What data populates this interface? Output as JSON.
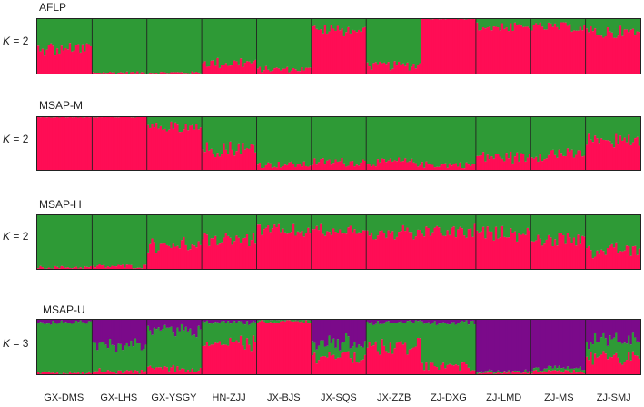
{
  "chart_data": {
    "type": "bar",
    "stacked": true,
    "ylim": [
      0,
      1
    ],
    "colors": {
      "green": "#2e9a36",
      "red": "#ff0d55",
      "purple": "#7b0a8a"
    },
    "populations": [
      "GX-DMS",
      "GX-LHS",
      "GX-YSGY",
      "HN-ZJJ",
      "JX-BJS",
      "JX-SQS",
      "JX-ZZB",
      "ZJ-DXG",
      "ZJ-LMD",
      "ZJ-MS",
      "ZJ-SMJ"
    ],
    "panels": [
      {
        "title": "AFLP",
        "k_label": "K",
        "k_value": "= 2",
        "series": [
          "red",
          "green"
        ],
        "membership": [
          [
            0.45,
            0.55
          ],
          [
            0.02,
            0.98
          ],
          [
            0.02,
            0.98
          ],
          [
            0.2,
            0.8
          ],
          [
            0.08,
            0.92
          ],
          [
            0.8,
            0.2
          ],
          [
            0.15,
            0.85
          ],
          [
            1.0,
            0.0
          ],
          [
            0.85,
            0.15
          ],
          [
            0.85,
            0.15
          ],
          [
            0.75,
            0.25
          ]
        ]
      },
      {
        "title": "MSAP-M",
        "k_label": "K",
        "k_value": "= 2",
        "series": [
          "red",
          "green"
        ],
        "membership": [
          [
            1.0,
            0.0
          ],
          [
            1.0,
            0.0
          ],
          [
            0.8,
            0.2
          ],
          [
            0.4,
            0.6
          ],
          [
            0.1,
            0.9
          ],
          [
            0.15,
            0.85
          ],
          [
            0.15,
            0.85
          ],
          [
            0.1,
            0.9
          ],
          [
            0.25,
            0.75
          ],
          [
            0.3,
            0.7
          ],
          [
            0.55,
            0.45
          ]
        ]
      },
      {
        "title": "MSAP-H",
        "k_label": "K",
        "k_value": "= 2",
        "series": [
          "red",
          "green"
        ],
        "membership": [
          [
            0.03,
            0.97
          ],
          [
            0.05,
            0.95
          ],
          [
            0.45,
            0.55
          ],
          [
            0.55,
            0.45
          ],
          [
            0.7,
            0.3
          ],
          [
            0.7,
            0.3
          ],
          [
            0.65,
            0.35
          ],
          [
            0.7,
            0.3
          ],
          [
            0.65,
            0.35
          ],
          [
            0.55,
            0.45
          ],
          [
            0.35,
            0.65
          ]
        ]
      },
      {
        "title": "MSAP-U",
        "k_label": "K",
        "k_value": "= 3",
        "series": [
          "red",
          "green",
          "purple"
        ],
        "membership": [
          [
            0.03,
            0.92,
            0.05
          ],
          [
            0.05,
            0.5,
            0.45
          ],
          [
            0.1,
            0.7,
            0.2
          ],
          [
            0.55,
            0.4,
            0.05
          ],
          [
            0.97,
            0.03,
            0.0
          ],
          [
            0.35,
            0.25,
            0.4
          ],
          [
            0.5,
            0.45,
            0.05
          ],
          [
            0.15,
            0.8,
            0.05
          ],
          [
            0.03,
            0.02,
            0.95
          ],
          [
            0.05,
            0.05,
            0.9
          ],
          [
            0.3,
            0.3,
            0.4
          ]
        ]
      }
    ]
  }
}
